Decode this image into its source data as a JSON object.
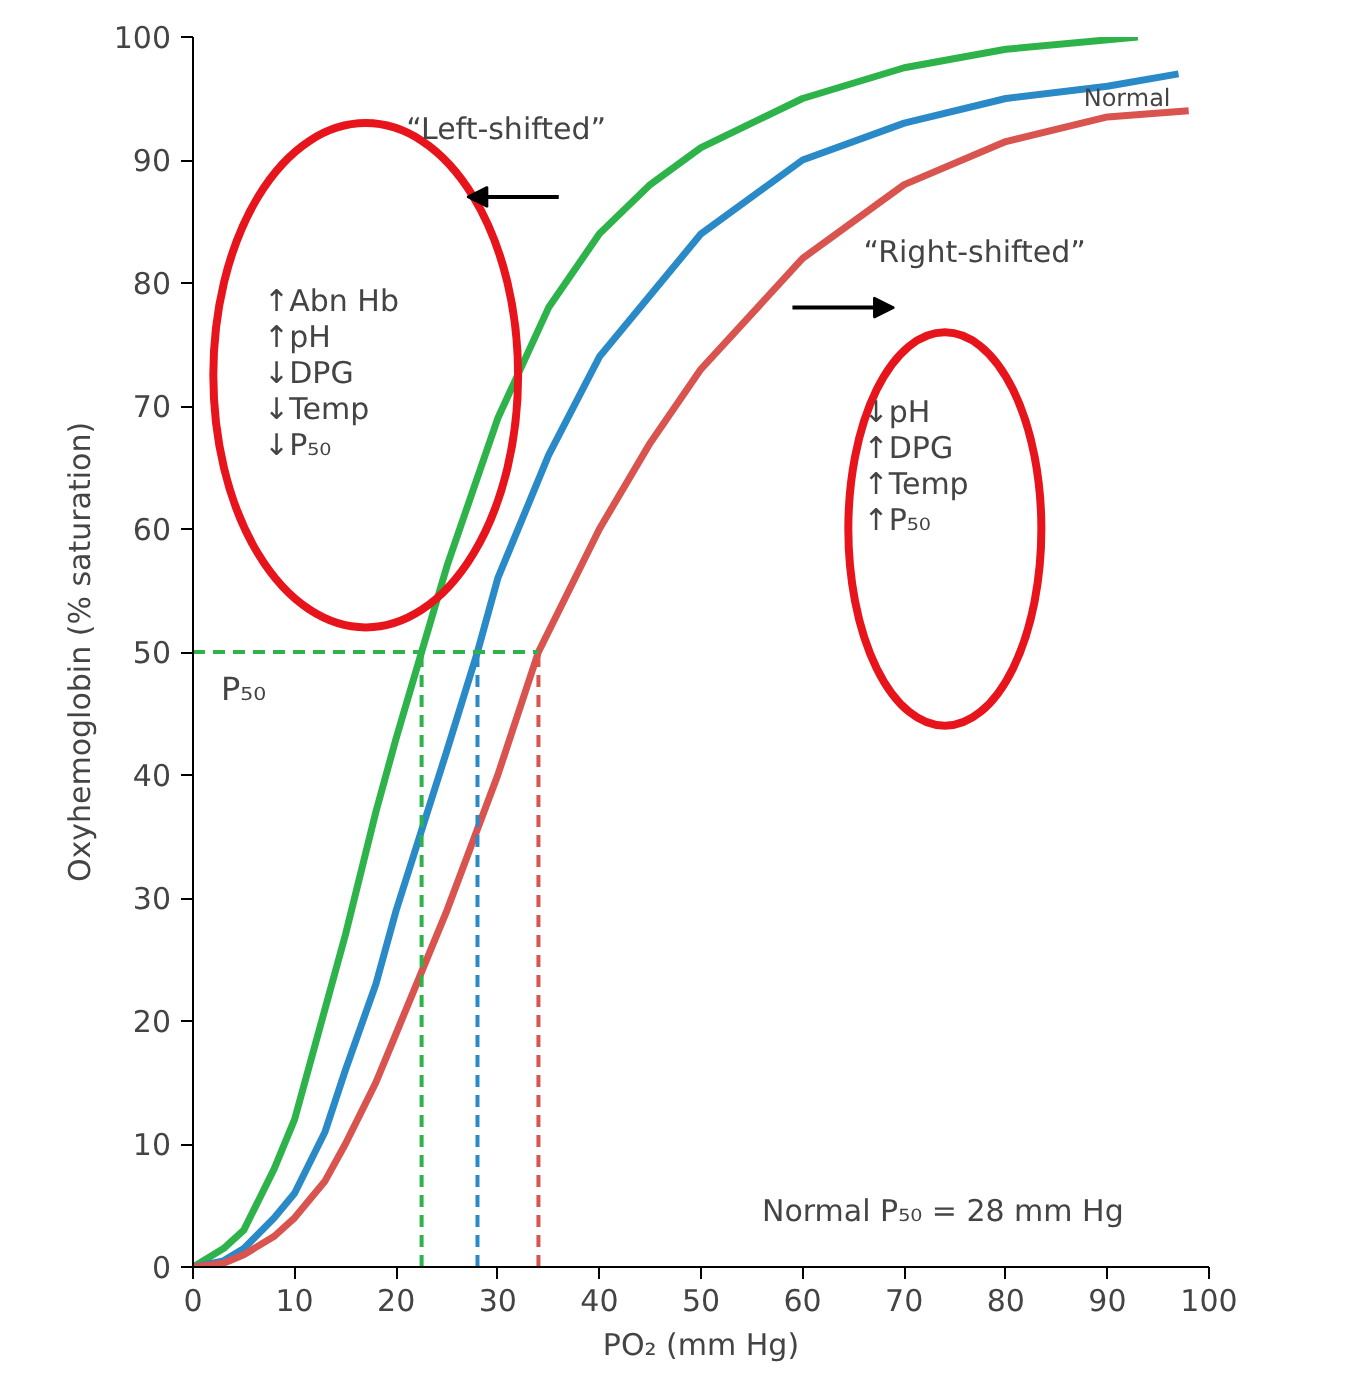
{
  "chart_data": {
    "type": "line",
    "xlabel": "PO₂ (mm Hg)",
    "ylabel": "Oxyhemoglobin (% saturation)",
    "xlim": [
      0,
      100
    ],
    "ylim": [
      0,
      100
    ],
    "xticks": [
      0,
      10,
      20,
      30,
      40,
      50,
      60,
      70,
      80,
      90,
      100
    ],
    "yticks": [
      0,
      10,
      20,
      30,
      40,
      50,
      60,
      70,
      80,
      90,
      100
    ],
    "grid": false,
    "marker": "none",
    "line_style": "solid",
    "series": [
      {
        "color": "#2db34a",
        "x": [
          0,
          3,
          5,
          8,
          10,
          13,
          15,
          18,
          20,
          22.5,
          25,
          30,
          35,
          40,
          45,
          50,
          60,
          70,
          80,
          93
        ],
        "values": [
          0,
          1.5,
          3,
          8,
          12,
          21,
          27,
          37,
          43,
          50,
          57,
          69,
          78,
          84,
          88,
          91,
          95,
          97.5,
          99,
          100
        ]
      },
      {
        "name": "Normal",
        "color": "#2a8ac8",
        "x": [
          0,
          3,
          5,
          8,
          10,
          13,
          15,
          18,
          20,
          25,
          28,
          30,
          35,
          40,
          45,
          50,
          60,
          70,
          80,
          90,
          97
        ],
        "values": [
          0,
          0.5,
          1.5,
          4,
          6,
          11,
          16,
          23,
          29,
          42,
          50,
          56,
          66,
          74,
          79,
          84,
          90,
          93,
          95,
          96,
          97
        ]
      },
      {
        "color": "#d9534f",
        "x": [
          0,
          3,
          5,
          8,
          10,
          13,
          15,
          18,
          20,
          25,
          30,
          34,
          40,
          45,
          50,
          60,
          70,
          80,
          90,
          98
        ],
        "values": [
          0,
          0.3,
          1,
          2.5,
          4,
          7,
          10,
          15,
          19,
          29,
          40,
          50,
          60,
          67,
          73,
          82,
          88,
          91.5,
          93.5,
          94
        ]
      }
    ],
    "ref_lines": [
      {
        "axis": "y",
        "value": 50,
        "label": "P₅₀",
        "color": "#2db34a",
        "line_style": "dashed"
      },
      {
        "axis": "x",
        "value": 22.5,
        "color": "#2db34a",
        "line_style": "dashed"
      },
      {
        "axis": "x",
        "value": 28,
        "color": "#2a8ac8",
        "line_style": "dashed"
      },
      {
        "axis": "x",
        "value": 34,
        "color": "#d9534f",
        "line_style": "dashed"
      }
    ],
    "annotations": [
      "“Left-shifted”",
      "“Right-shifted”",
      "↑Abn Hb\n↑pH\n↓DPG\n↓Temp\n↓P₅₀",
      "↓pH\n↑DPG\n↑Temp\n↑P₅₀",
      "Normal P₅₀ = 28 mm Hg"
    ]
  }
}
